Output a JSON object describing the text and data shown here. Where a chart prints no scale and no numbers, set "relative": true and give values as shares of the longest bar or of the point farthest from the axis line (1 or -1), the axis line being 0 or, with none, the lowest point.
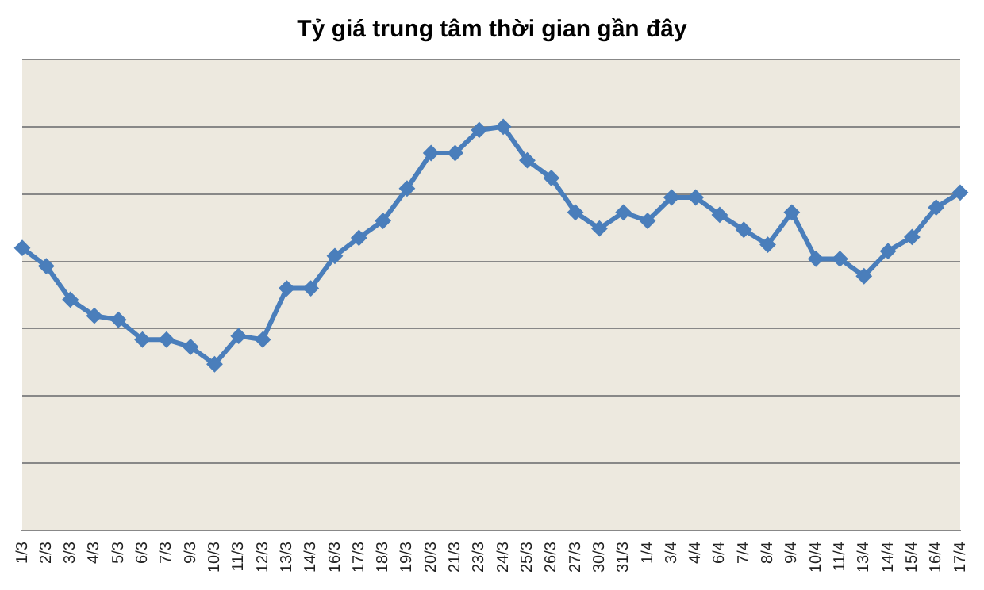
{
  "chart_data": {
    "type": "line",
    "title": "Tỷ giá trung tâm thời gian gần đây",
    "relative": true,
    "grid": "y",
    "marker": "diamond",
    "line_style": "solid",
    "legend": false,
    "categories": [
      "1/3",
      "2/3",
      "3/3",
      "4/3",
      "5/3",
      "6/3",
      "7/3",
      "9/3",
      "10/3",
      "11/3",
      "12/3",
      "13/3",
      "14/3",
      "16/3",
      "17/3",
      "18/3",
      "19/3",
      "20/3",
      "21/3",
      "23/3",
      "24/3",
      "25/3",
      "26/3",
      "27/3",
      "30/3",
      "31/3",
      "1/4",
      "3/4",
      "4/4",
      "6/4",
      "7/4",
      "8/4",
      "9/4",
      "10/4",
      "11/4",
      "13/4",
      "14/4",
      "15/4",
      "16/4",
      "17/4"
    ],
    "series": [
      {
        "color": "#4a7ebb",
        "values": [
          0.7,
          0.655,
          0.572,
          0.532,
          0.522,
          0.473,
          0.473,
          0.455,
          0.412,
          0.482,
          0.473,
          0.6,
          0.6,
          0.68,
          0.725,
          0.767,
          0.847,
          0.935,
          0.935,
          0.992,
          1,
          0.917,
          0.873,
          0.788,
          0.748,
          0.788,
          0.767,
          0.825,
          0.825,
          0.782,
          0.745,
          0.708,
          0.788,
          0.673,
          0.673,
          0.63,
          0.692,
          0.727,
          0.8,
          0.837
        ]
      }
    ]
  }
}
